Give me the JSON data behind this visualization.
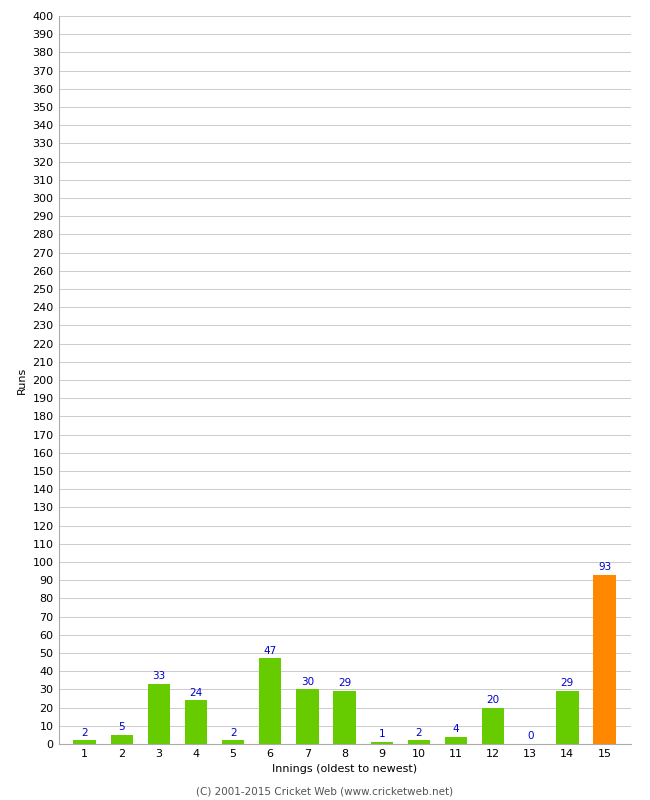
{
  "xlabel": "Innings (oldest to newest)",
  "ylabel": "Runs",
  "categories": [
    1,
    2,
    3,
    4,
    5,
    6,
    7,
    8,
    9,
    10,
    11,
    12,
    13,
    14,
    15
  ],
  "values": [
    2,
    5,
    33,
    24,
    2,
    47,
    30,
    29,
    1,
    2,
    4,
    20,
    0,
    29,
    93
  ],
  "bar_colors": [
    "#66cc00",
    "#66cc00",
    "#66cc00",
    "#66cc00",
    "#66cc00",
    "#66cc00",
    "#66cc00",
    "#66cc00",
    "#66cc00",
    "#66cc00",
    "#66cc00",
    "#66cc00",
    "#66cc00",
    "#66cc00",
    "#ff8800"
  ],
  "label_color": "#0000cc",
  "background_color": "#ffffff",
  "plot_bg_color": "#ffffff",
  "grid_color": "#cccccc",
  "ylim": [
    0,
    400
  ],
  "footer": "(C) 2001-2015 Cricket Web (www.cricketweb.net)",
  "label_fontsize": 7.5,
  "axis_tick_fontsize": 8,
  "ylabel_fontsize": 8,
  "xlabel_fontsize": 8,
  "footer_fontsize": 7.5,
  "bar_width": 0.6
}
